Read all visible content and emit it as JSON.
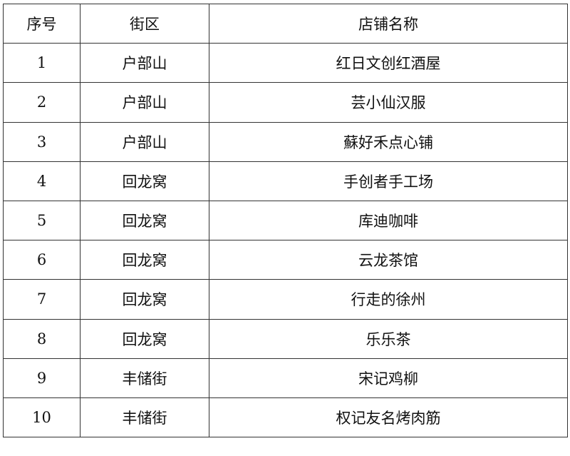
{
  "table": {
    "headers": [
      "序号",
      "街区",
      "店铺名称"
    ],
    "rows": [
      [
        "1",
        "户部山",
        "红日文创红酒屋"
      ],
      [
        "2",
        "户部山",
        "芸小仙汉服"
      ],
      [
        "3",
        "户部山",
        "蘇好禾点心铺"
      ],
      [
        "4",
        "回龙窝",
        "手创者手工场"
      ],
      [
        "5",
        "回龙窝",
        "库迪咖啡"
      ],
      [
        "6",
        "回龙窝",
        "云龙茶馆"
      ],
      [
        "7",
        "回龙窝",
        "行走的徐州"
      ],
      [
        "8",
        "回龙窝",
        "乐乐茶"
      ],
      [
        "9",
        "丰储街",
        "宋记鸡柳"
      ],
      [
        "10",
        "丰储街",
        "权记友名烤肉筋"
      ]
    ]
  }
}
